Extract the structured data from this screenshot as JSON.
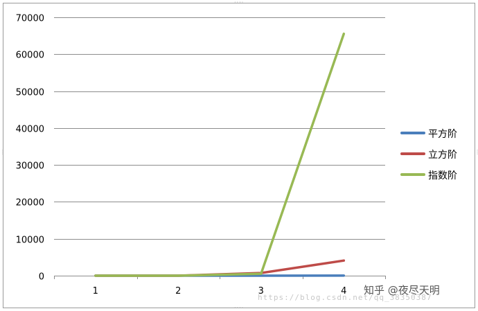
{
  "chart_data": {
    "type": "line",
    "categories": [
      "1",
      "2",
      "3",
      "4"
    ],
    "series": [
      {
        "name": "平方阶",
        "color": "#4a7ebb",
        "values": [
          1,
          4,
          9,
          16
        ]
      },
      {
        "name": "立方阶",
        "color": "#be4b48",
        "values": [
          1,
          8,
          729,
          4096
        ]
      },
      {
        "name": "指数阶",
        "color": "#98b954",
        "values": [
          2,
          4,
          512,
          65536
        ]
      }
    ],
    "y_ticks": [
      "0",
      "10000",
      "20000",
      "30000",
      "40000",
      "50000",
      "60000",
      "70000"
    ],
    "ylim": [
      0,
      70000
    ],
    "grid": true,
    "legend_position": "right"
  },
  "watermark": {
    "text": "知乎 @夜尽天明",
    "url": "https://blog.csdn.net/qq_38350387"
  }
}
